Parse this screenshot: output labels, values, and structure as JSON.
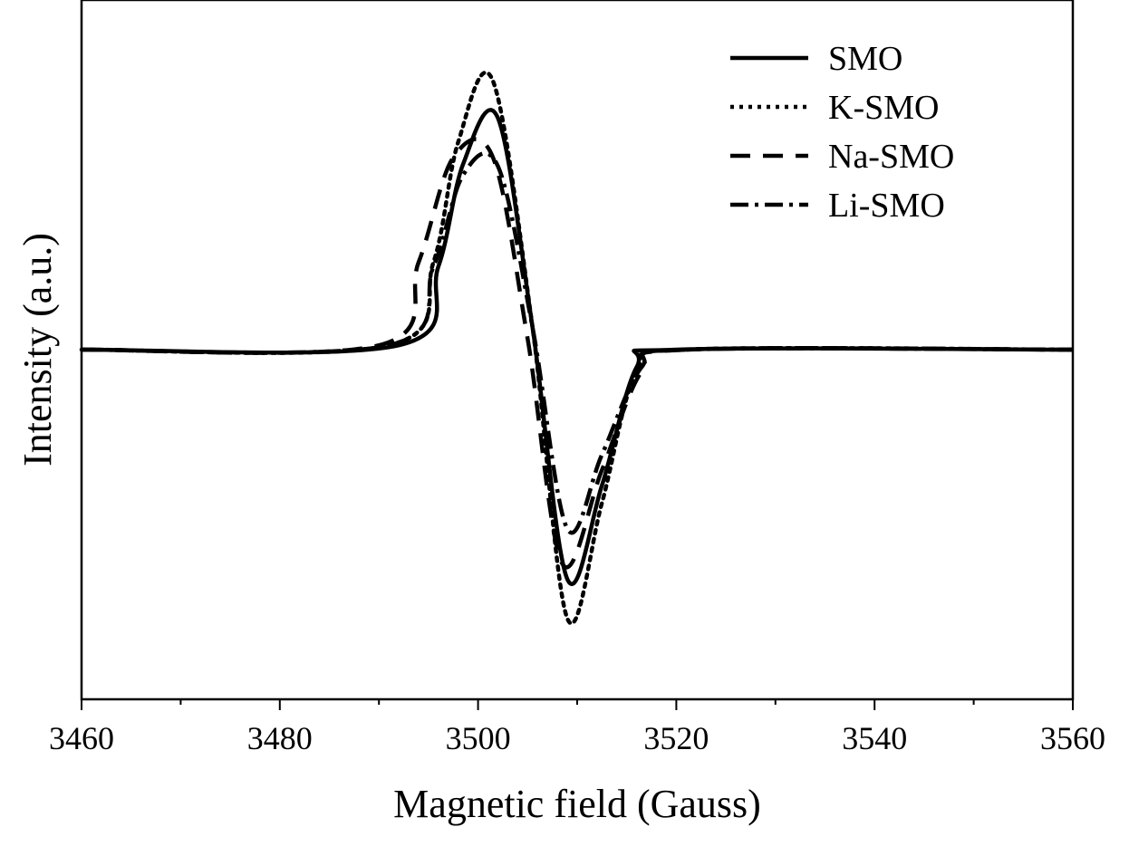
{
  "chart_data": {
    "type": "line",
    "title": "",
    "xlabel": "Magnetic field (Gauss)",
    "ylabel": "Intensity (a.u.)",
    "xlim": [
      3460,
      3560
    ],
    "ylim": [
      -1.6,
      1.6
    ],
    "x_ticks": [
      "3460",
      "3480",
      "3500",
      "3520",
      "3540",
      "3560"
    ],
    "y_ticks_shown": false,
    "grid": false,
    "legend_position": "top-right",
    "baseline": 0,
    "series": [
      {
        "name": "SMO",
        "style": "solid",
        "color": "#000000",
        "x": [
          3460,
          3492,
          3496,
          3498.5,
          3502,
          3505.5,
          3509,
          3512.5,
          3516,
          3520,
          3560
        ],
        "y": [
          0,
          0.02,
          0.38,
          0.85,
          1.06,
          0.1,
          -1.05,
          -0.62,
          -0.08,
          0,
          0
        ]
      },
      {
        "name": "K-SMO",
        "style": "dotted",
        "color": "#000000",
        "x": [
          3460,
          3491,
          3495.5,
          3498,
          3501.5,
          3505.5,
          3509,
          3512.5,
          3516,
          3521,
          3560
        ],
        "y": [
          0,
          0.02,
          0.4,
          0.95,
          1.23,
          0.1,
          -1.23,
          -0.7,
          -0.1,
          0,
          0
        ]
      },
      {
        "name": "Na-SMO",
        "style": "dashed",
        "color": "#000000",
        "x": [
          3460,
          3490,
          3494,
          3497.5,
          3501.5,
          3505,
          3508.5,
          3512.5,
          3516.5,
          3521,
          3560
        ],
        "y": [
          0,
          0.02,
          0.4,
          0.88,
          0.88,
          0.05,
          -0.98,
          -0.55,
          -0.1,
          0,
          0
        ]
      },
      {
        "name": "Li-SMO",
        "style": "dash-dot",
        "color": "#000000",
        "x": [
          3460,
          3491,
          3495.5,
          3498.5,
          3502,
          3505.5,
          3509,
          3512.5,
          3516.5,
          3521,
          3560
        ],
        "y": [
          0,
          0.02,
          0.38,
          0.8,
          0.84,
          0.1,
          -0.82,
          -0.48,
          -0.08,
          0,
          0
        ]
      }
    ]
  }
}
